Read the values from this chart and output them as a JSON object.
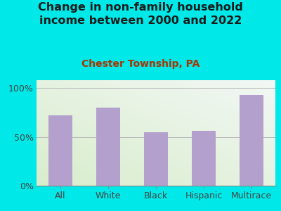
{
  "title": "Change in non-family household\nincome between 2000 and 2022",
  "subtitle": "Chester Township, PA",
  "categories": [
    "All",
    "White",
    "Black",
    "Hispanic",
    "Multirace"
  ],
  "values": [
    72,
    80,
    55,
    56,
    93
  ],
  "bar_color": "#b3a0cc",
  "background_color": "#00e8e8",
  "title_color": "#1a1a1a",
  "subtitle_color": "#aa3300",
  "ylabel_ticks": [
    "0%",
    "50%",
    "100%"
  ],
  "ytick_vals": [
    0,
    50,
    100
  ],
  "ylim": [
    0,
    108
  ],
  "title_fontsize": 11.5,
  "subtitle_fontsize": 10,
  "tick_fontsize": 9,
  "bar_width": 0.5
}
